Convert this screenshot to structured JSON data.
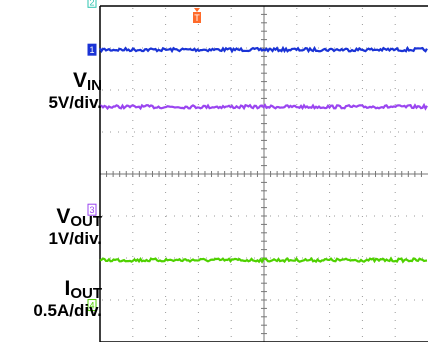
{
  "chart_data": {
    "type": "line",
    "title": "",
    "xlabel": "",
    "ylabel": "",
    "grid": true,
    "divisions": {
      "x": 10,
      "y": 8
    },
    "trigger_marker": "T",
    "channels": [
      {
        "id": "1",
        "name": "VIN",
        "name_main": "V",
        "name_sub": "IN",
        "scale": "5V/div.",
        "color": "#1a33d6",
        "marker_color": "#1a33d6",
        "level_div": 1.04,
        "marker_div": 1.04
      },
      {
        "id": "3",
        "name": "VOUT",
        "name_main": "V",
        "name_sub": "OUT",
        "scale": "1V/div.",
        "color": "#9a45f0",
        "marker_color": "#9a45f0",
        "level_div": 2.4,
        "marker_div": 4.85
      },
      {
        "id": "4",
        "name": "IOUT",
        "name_main": "I",
        "name_sub": "OUT",
        "scale": "0.5A/div.",
        "color": "#4fd100",
        "marker_color": "#4fd100",
        "level_div": 6.05,
        "marker_div": 7.12
      },
      {
        "id": "2",
        "name": "",
        "scale": "",
        "color": "#2ec4b0",
        "marker_color": "#2ec4b0",
        "level_div": null,
        "marker_div": -0.1
      }
    ]
  }
}
